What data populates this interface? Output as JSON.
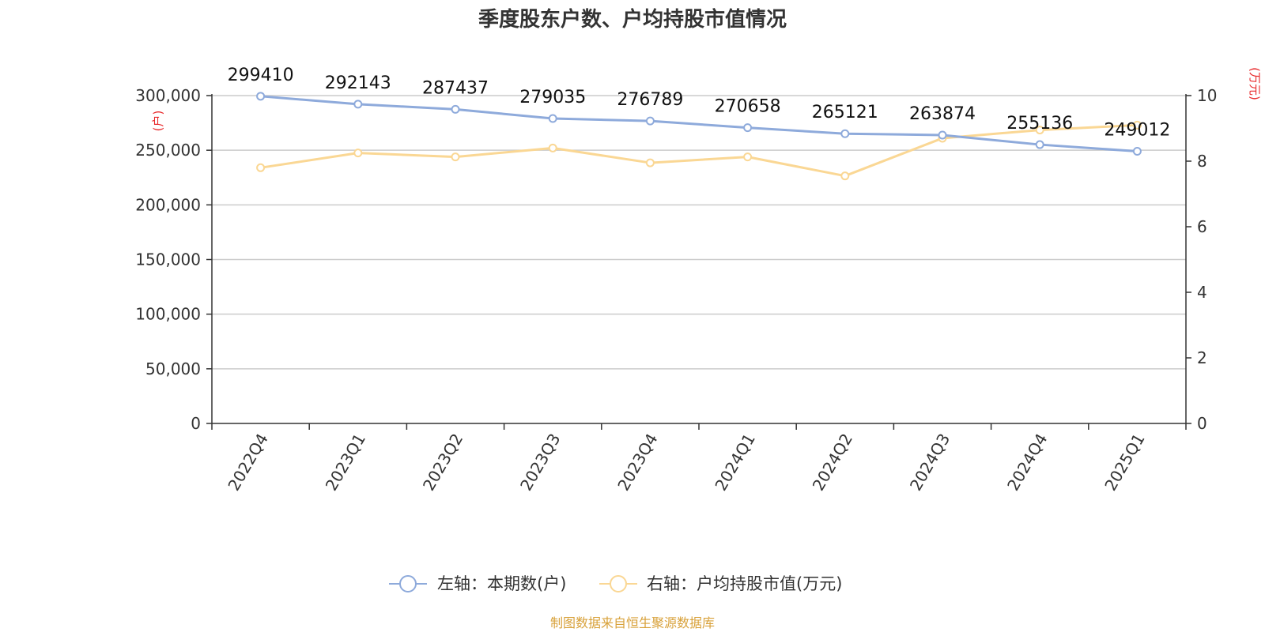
{
  "colors": {
    "left_series": "#8eaadb",
    "right_series": "#fad794",
    "grid": "#cccccc",
    "axis": "#333333",
    "unit": "#e8292b",
    "source": "#d8a13a"
  },
  "chart_data": {
    "type": "line",
    "title": "季度股东户数、户均持股市值情况",
    "categories": [
      "2022Q4",
      "2023Q1",
      "2023Q2",
      "2023Q3",
      "2023Q4",
      "2024Q1",
      "2024Q2",
      "2024Q3",
      "2024Q4",
      "2025Q1"
    ],
    "left_axis": {
      "unit_label": "(户)",
      "ylim": [
        0,
        300000
      ],
      "ticks": [
        0,
        50000,
        100000,
        150000,
        200000,
        250000,
        300000
      ],
      "tick_labels": [
        "0",
        "50,000",
        "100,000",
        "150,000",
        "200,000",
        "250,000",
        "300,000"
      ]
    },
    "right_axis": {
      "unit_label": "(万元)",
      "ylim": [
        0,
        10
      ],
      "ticks": [
        0,
        2,
        4,
        6,
        8,
        10
      ],
      "tick_labels": [
        "0",
        "2",
        "4",
        "6",
        "8",
        "10"
      ]
    },
    "grid": true,
    "legend_position": "bottom-center",
    "series": [
      {
        "name": "左轴：本期数(户)",
        "axis": "left",
        "values": [
          299410,
          292143,
          287437,
          279035,
          276789,
          270658,
          265121,
          263874,
          255136,
          249012
        ],
        "labels": [
          "299410",
          "292143",
          "287437",
          "279035",
          "276789",
          "270658",
          "265121",
          "263874",
          "255136",
          "249012"
        ]
      },
      {
        "name": "右轴：户均持股市值(万元)",
        "axis": "right",
        "values": [
          7.8,
          8.25,
          8.13,
          8.4,
          7.95,
          8.13,
          7.55,
          8.7,
          8.95,
          9.1
        ]
      }
    ]
  },
  "source": "制图数据来自恒生聚源数据库"
}
